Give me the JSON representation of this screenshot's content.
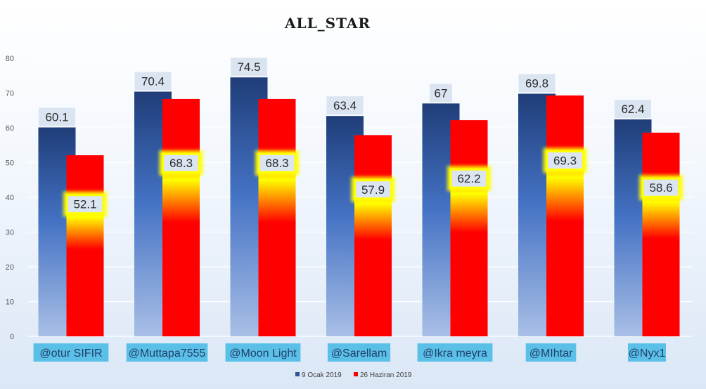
{
  "chart_data": {
    "type": "bar",
    "title": "ALL_STAR",
    "categories": [
      "@otur SIFIR",
      "@Muttapa7555",
      "@Moon Light",
      "@Sarellam",
      "@Ikra meyra",
      "@MIhtar",
      "@Nyx1"
    ],
    "series": [
      {
        "name": "9 Ocak 2019",
        "values": [
          60.1,
          70.4,
          74.5,
          63.4,
          67,
          69.8,
          62.4
        ],
        "color": "#2f5597"
      },
      {
        "name": "26 Haziran 2019",
        "values": [
          52.1,
          68.3,
          68.3,
          57.9,
          62.2,
          69.3,
          58.6
        ],
        "color": "#ff0000"
      }
    ],
    "ylim": [
      0,
      80
    ],
    "yticks": [
      0,
      10,
      20,
      30,
      40,
      50,
      60,
      70,
      80
    ],
    "grid": true,
    "legend_position": "bottom",
    "colors": {
      "label_highlight": "#ffff00",
      "label_box": "#dbe5f1",
      "category_box": "#5bc0e8"
    }
  }
}
